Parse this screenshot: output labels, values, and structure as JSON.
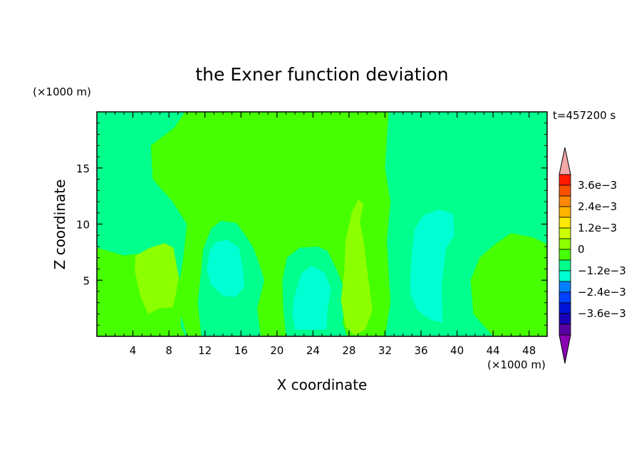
{
  "chart_data": {
    "type": "heatmap",
    "title": "the Exner function deviation",
    "xlabel": "X coordinate",
    "ylabel": "Z coordinate",
    "x_unit": "(×1000 m)",
    "y_unit": "(×1000 m)",
    "time_label": "t=457200 s",
    "xlim": [
      0,
      50
    ],
    "ylim": [
      0,
      20
    ],
    "x_ticks": [
      4,
      8,
      12,
      16,
      20,
      24,
      28,
      32,
      36,
      40,
      44,
      48
    ],
    "y_ticks": [
      5,
      10,
      15
    ],
    "background_level": 0,
    "regions": [
      {
        "level": 1,
        "outline": [
          [
            9.8,
            20
          ],
          [
            28.5,
            20
          ],
          [
            32.4,
            20
          ],
          [
            32.0,
            15
          ],
          [
            32.6,
            12
          ],
          [
            32.2,
            8.5
          ],
          [
            32.6,
            3
          ],
          [
            32.0,
            0
          ],
          [
            25,
            0
          ],
          [
            20,
            0
          ],
          [
            18,
            0
          ],
          [
            10,
            0
          ],
          [
            9.3,
            2
          ],
          [
            8.2,
            6
          ],
          [
            3,
            7
          ],
          [
            0,
            7.8
          ],
          [
            0,
            6
          ],
          [
            3.5,
            5
          ],
          [
            7,
            5
          ],
          [
            9,
            4
          ],
          [
            9.6,
            7
          ],
          [
            10,
            10
          ],
          [
            8.4,
            12
          ],
          [
            6.2,
            14
          ],
          [
            6.0,
            17
          ],
          [
            8.6,
            18.6
          ]
        ]
      },
      {
        "level": 1,
        "outline": [
          [
            0,
            7.9
          ],
          [
            3,
            7.2
          ],
          [
            6,
            7.5
          ],
          [
            8.6,
            7.2
          ],
          [
            9.5,
            4
          ],
          [
            9.3,
            1
          ],
          [
            9.8,
            0
          ],
          [
            0,
            0
          ]
        ]
      },
      {
        "level": 1,
        "outline": [
          [
            44.2,
            8.2
          ],
          [
            46,
            9.2
          ],
          [
            48.5,
            8.8
          ],
          [
            50,
            8.2
          ],
          [
            50,
            0
          ],
          [
            44,
            0
          ],
          [
            41.8,
            2
          ],
          [
            41.5,
            5
          ],
          [
            42.5,
            7
          ]
        ]
      },
      {
        "level": 0,
        "outline": [
          [
            11.6,
            0
          ],
          [
            11.2,
            3
          ],
          [
            11.6,
            6
          ],
          [
            11.8,
            7.8
          ],
          [
            12.7,
            9.6
          ],
          [
            13.8,
            10.3
          ],
          [
            15.5,
            10.1
          ],
          [
            16.5,
            9
          ],
          [
            17.3,
            8
          ],
          [
            17.8,
            7
          ],
          [
            18.6,
            5
          ],
          [
            17.8,
            2.5
          ],
          [
            18.2,
            0
          ]
        ]
      },
      {
        "level": 0,
        "outline": [
          [
            21.0,
            0
          ],
          [
            20.7,
            2.5
          ],
          [
            20.6,
            5
          ],
          [
            21.1,
            7
          ],
          [
            22.5,
            7.9
          ],
          [
            24.6,
            8.0
          ],
          [
            25.6,
            7.6
          ],
          [
            26.6,
            6
          ],
          [
            27.6,
            4
          ],
          [
            27.3,
            1.2
          ],
          [
            27.8,
            0
          ]
        ]
      },
      {
        "level": 1,
        "outline": [
          [
            27.8,
            0
          ],
          [
            27.5,
            2
          ],
          [
            28.0,
            4
          ],
          [
            28.3,
            6.5
          ],
          [
            28.8,
            8
          ],
          [
            29.6,
            9.5
          ],
          [
            30.4,
            10
          ],
          [
            31.5,
            9
          ],
          [
            31.0,
            5.5
          ],
          [
            31.6,
            2.5
          ],
          [
            31.2,
            0
          ]
        ]
      },
      {
        "level": 0,
        "outline": [
          [
            35.0,
            0.8
          ],
          [
            34.9,
            3
          ],
          [
            34.8,
            5.5
          ],
          [
            35.0,
            8
          ],
          [
            35.9,
            9.6
          ],
          [
            37.4,
            10.3
          ],
          [
            39.5,
            10.2
          ],
          [
            40.2,
            9
          ],
          [
            39.7,
            7.8
          ],
          [
            39.0,
            5.5
          ],
          [
            39.0,
            3
          ],
          [
            38.5,
            0.8
          ]
        ]
      },
      {
        "level": 2,
        "outline": [
          [
            4.2,
            5.9
          ],
          [
            4.3,
            7.2
          ],
          [
            5.9,
            7.9
          ],
          [
            7.5,
            8.3
          ],
          [
            8.5,
            7.9
          ],
          [
            9.1,
            5.3
          ],
          [
            8.7,
            3.5
          ],
          [
            8.4,
            2.6
          ],
          [
            7.0,
            2.5
          ],
          [
            5.7,
            2.0
          ],
          [
            4.8,
            3.6
          ]
        ]
      },
      {
        "level": 2,
        "outline": [
          [
            27.1,
            3.2
          ],
          [
            27.5,
            6
          ],
          [
            27.6,
            8.5
          ],
          [
            28.3,
            11
          ],
          [
            29.0,
            12.2
          ],
          [
            29.6,
            11.8
          ],
          [
            29.2,
            10.2
          ],
          [
            29.6,
            8.6
          ],
          [
            30.0,
            6
          ],
          [
            30.3,
            4.2
          ],
          [
            30.6,
            2.3
          ],
          [
            29.8,
            0.6
          ],
          [
            28.6,
            0.1
          ],
          [
            27.6,
            0.9
          ]
        ]
      },
      {
        "level": -1,
        "outline": [
          [
            12.2,
            5.9
          ],
          [
            12.5,
            7.6
          ],
          [
            13.2,
            8.4
          ],
          [
            14.5,
            8.6
          ],
          [
            15.8,
            7.9
          ],
          [
            16.2,
            6
          ],
          [
            16.4,
            4.5
          ],
          [
            15.5,
            3.5
          ],
          [
            14.0,
            3.6
          ],
          [
            12.7,
            4.6
          ]
        ]
      },
      {
        "level": -1,
        "outline": [
          [
            22.0,
            0.6
          ],
          [
            21.7,
            2
          ],
          [
            21.9,
            3.5
          ],
          [
            22.7,
            5.6
          ],
          [
            23.8,
            6.3
          ],
          [
            25.3,
            5.7
          ],
          [
            26.0,
            4.2
          ],
          [
            25.6,
            2.2
          ],
          [
            25.5,
            0.6
          ]
        ]
      },
      {
        "level": -1,
        "outline": [
          [
            34.8,
            3.8
          ],
          [
            34.8,
            5.5
          ],
          [
            35.0,
            7.6
          ],
          [
            35.3,
            9.6
          ],
          [
            36.3,
            10.8
          ],
          [
            38.0,
            11.3
          ],
          [
            39.6,
            10.9
          ],
          [
            39.7,
            9
          ],
          [
            38.8,
            7.9
          ],
          [
            38.5,
            6
          ],
          [
            38.3,
            4.5
          ],
          [
            38.4,
            1.2
          ],
          [
            37.0,
            1.5
          ],
          [
            35.6,
            2.3
          ]
        ]
      }
    ],
    "color_levels": [
      {
        "level": -6,
        "color": "#5a00a0"
      },
      {
        "level": -5,
        "color": "#1a00b8"
      },
      {
        "level": -4,
        "color": "#0014d8"
      },
      {
        "level": -3,
        "color": "#0040ff"
      },
      {
        "level": -2,
        "color": "#0080ff"
      },
      {
        "level": -1,
        "color": "#00ffd2"
      },
      {
        "level": 0,
        "color": "#00ff8c"
      },
      {
        "level": 1,
        "color": "#46ff00"
      },
      {
        "level": 2,
        "color": "#8cff00"
      },
      {
        "level": 3,
        "color": "#ccff00"
      },
      {
        "level": 4,
        "color": "#ffea00"
      },
      {
        "level": 5,
        "color": "#ffb400"
      },
      {
        "level": 6,
        "color": "#ff8800"
      },
      {
        "level": 7,
        "color": "#ff5200"
      },
      {
        "level": 8,
        "color": "#ff1a00"
      }
    ],
    "colorbar": {
      "labels": [
        "3.6e−3",
        "2.4e−3",
        "1.2e−3",
        "0",
        "−1.2e−3",
        "−2.4e−3",
        "−3.6e−3"
      ],
      "bands_top_to_bottom": [
        "#ff1a00",
        "#ff5200",
        "#ff8800",
        "#ffb400",
        "#ffea00",
        "#ccff00",
        "#8cff00",
        "#46ff00",
        "#00ff8c",
        "#00ffd2",
        "#0080ff",
        "#0040ff",
        "#0014d8",
        "#1a00b8",
        "#5a00a0"
      ],
      "over_color": "#f4a7a7",
      "under_color": "#8c00b4"
    }
  }
}
